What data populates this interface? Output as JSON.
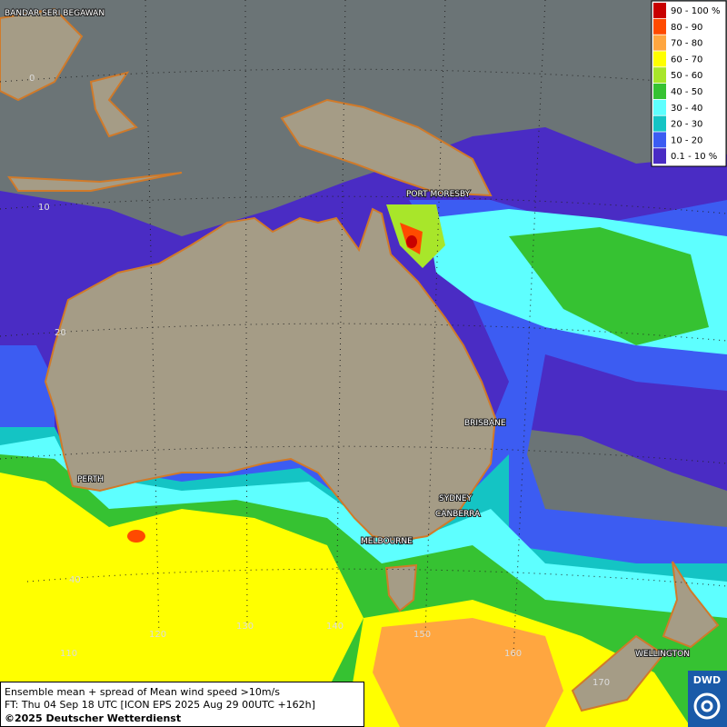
{
  "legend": {
    "entries": [
      {
        "label": "90 - 100 %",
        "color": "#c80000"
      },
      {
        "label": "80 - 90",
        "color": "#ff4a00"
      },
      {
        "label": "70 - 80",
        "color": "#ffa640"
      },
      {
        "label": "60 - 70",
        "color": "#ffff00"
      },
      {
        "label": "50 - 60",
        "color": "#a8e62a"
      },
      {
        "label": "40 - 50",
        "color": "#36c232"
      },
      {
        "label": "30 - 40",
        "color": "#5effff"
      },
      {
        "label": "20 - 30",
        "color": "#14c4c4"
      },
      {
        "label": "10 - 20",
        "color": "#3c5cf2"
      },
      {
        "label": "0.1 - 10 %",
        "color": "#4a2cc4"
      }
    ]
  },
  "places": [
    "BANDAR SERI BEGAWAN",
    "PORT MORESBY",
    "BRISBANE",
    "PERTH",
    "SYDNEY",
    "CANBERRA",
    "MELBOURNE",
    "WELLINGTON"
  ],
  "grid_labels": [
    "0",
    "10",
    "20",
    "40",
    "110",
    "120",
    "130",
    "140",
    "150",
    "160",
    "170"
  ],
  "footer": {
    "line1": "Ensemble mean + spread of Mean wind speed >10m/s",
    "line2": "FT: Thu 04 Sep 18 UTC [ICON EPS 2025 Aug 29 00UTC +162h]",
    "line3": "©2025 Deutscher Wetterdienst"
  },
  "logo": "DWD"
}
